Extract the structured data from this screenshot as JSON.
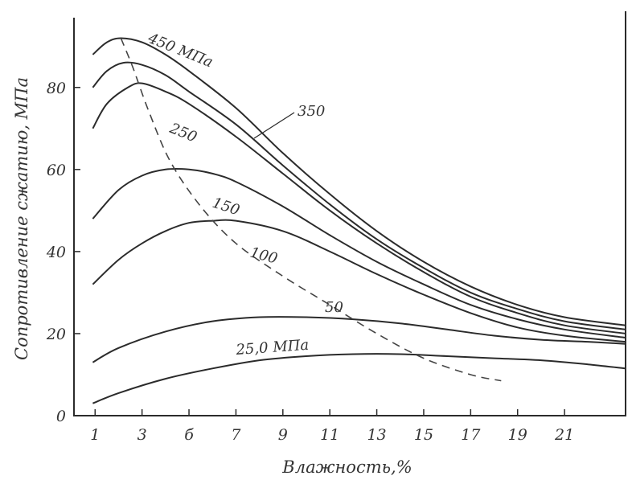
{
  "chart_data": {
    "type": "line",
    "title": "",
    "xlabel": "Влажность,%",
    "ylabel": "Сопротивление сжатию, МПа",
    "xlim": [
      0.1,
      23.6
    ],
    "ylim": [
      0,
      97
    ],
    "x_ticks": [
      1,
      3,
      5,
      7,
      9,
      11,
      13,
      15,
      17,
      19,
      21
    ],
    "x_tick_labels": [
      "1",
      "3",
      "б",
      "7",
      "9",
      "11",
      "13",
      "15",
      "17",
      "19",
      "21"
    ],
    "y_ticks": [
      0,
      20,
      40,
      60,
      80
    ],
    "y_tick_labels": [
      "0",
      "20",
      "40",
      "60",
      "80"
    ],
    "grid": false,
    "series": [
      {
        "name": "450 МПа",
        "points": [
          [
            0.9,
            88
          ],
          [
            1.5,
            91
          ],
          [
            2.1,
            92
          ],
          [
            3,
            91
          ],
          [
            4,
            88
          ],
          [
            5,
            84
          ],
          [
            7,
            75
          ],
          [
            9,
            64
          ],
          [
            11,
            54
          ],
          [
            13,
            45
          ],
          [
            15,
            37.5
          ],
          [
            17,
            31.5
          ],
          [
            19,
            27
          ],
          [
            21,
            24
          ],
          [
            23.6,
            22
          ]
        ]
      },
      {
        "name": "350",
        "points": [
          [
            0.9,
            80
          ],
          [
            1.5,
            84
          ],
          [
            2.2,
            86
          ],
          [
            3,
            85.5
          ],
          [
            4,
            83
          ],
          [
            5,
            79
          ],
          [
            7,
            71
          ],
          [
            9,
            61
          ],
          [
            11,
            51.5
          ],
          [
            13,
            43
          ],
          [
            15,
            36
          ],
          [
            17,
            30
          ],
          [
            19,
            26
          ],
          [
            21,
            23
          ],
          [
            23.6,
            21
          ]
        ]
      },
      {
        "name": "250",
        "points": [
          [
            0.9,
            70
          ],
          [
            1.5,
            76
          ],
          [
            2.4,
            80
          ],
          [
            3,
            81
          ],
          [
            4,
            79
          ],
          [
            5,
            76
          ],
          [
            7,
            68
          ],
          [
            9,
            59
          ],
          [
            11,
            50
          ],
          [
            13,
            42
          ],
          [
            15,
            35
          ],
          [
            17,
            29
          ],
          [
            19,
            25
          ],
          [
            21,
            22
          ],
          [
            23.6,
            20
          ]
        ]
      },
      {
        "name": "150",
        "points": [
          [
            0.9,
            48
          ],
          [
            2,
            55
          ],
          [
            3,
            58.5
          ],
          [
            4,
            60
          ],
          [
            5,
            60
          ],
          [
            6,
            59
          ],
          [
            7,
            57
          ],
          [
            9,
            51
          ],
          [
            11,
            44
          ],
          [
            13,
            37.5
          ],
          [
            15,
            32
          ],
          [
            17,
            27
          ],
          [
            19,
            23.5
          ],
          [
            21,
            21
          ],
          [
            23.6,
            19
          ]
        ]
      },
      {
        "name": "100",
        "points": [
          [
            0.9,
            32
          ],
          [
            2,
            38
          ],
          [
            3,
            42
          ],
          [
            4,
            45
          ],
          [
            5,
            47
          ],
          [
            6,
            47.5
          ],
          [
            7,
            47.5
          ],
          [
            9,
            45
          ],
          [
            11,
            40
          ],
          [
            13,
            34.5
          ],
          [
            15,
            29.5
          ],
          [
            17,
            25
          ],
          [
            19,
            21.5
          ],
          [
            21,
            19.5
          ],
          [
            23.6,
            18
          ]
        ]
      },
      {
        "name": "50",
        "points": [
          [
            0.9,
            13
          ],
          [
            2,
            16.5
          ],
          [
            4,
            20.5
          ],
          [
            6,
            23
          ],
          [
            8,
            24
          ],
          [
            10,
            24
          ],
          [
            12,
            23.5
          ],
          [
            14,
            22.5
          ],
          [
            16,
            21
          ],
          [
            18,
            19.5
          ],
          [
            20,
            18.5
          ],
          [
            22,
            18
          ],
          [
            23.6,
            17.5
          ]
        ]
      },
      {
        "name": "25,0 МПа",
        "points": [
          [
            0.9,
            3
          ],
          [
            2,
            5.5
          ],
          [
            4,
            9
          ],
          [
            6,
            11.5
          ],
          [
            8,
            13.5
          ],
          [
            10,
            14.5
          ],
          [
            12,
            15
          ],
          [
            14,
            15
          ],
          [
            16,
            14.5
          ],
          [
            18,
            14
          ],
          [
            20,
            13.5
          ],
          [
            22,
            12.5
          ],
          [
            23.6,
            11.5
          ]
        ]
      },
      {
        "name": "",
        "style": "dashed",
        "points": [
          [
            2.1,
            92
          ],
          [
            2.6,
            85
          ],
          [
            3.3,
            74
          ],
          [
            4.2,
            62
          ],
          [
            5.5,
            51
          ],
          [
            7,
            42
          ],
          [
            9,
            34
          ],
          [
            11,
            27
          ],
          [
            13,
            20
          ],
          [
            15,
            14
          ],
          [
            17,
            10
          ],
          [
            18.3,
            8.5
          ]
        ]
      }
    ],
    "annotations": [
      {
        "text": "450 МПа",
        "series": "450 МПа"
      },
      {
        "text": "350",
        "series": "350"
      },
      {
        "text": "250",
        "series": "250"
      },
      {
        "text": "150",
        "series": "150"
      },
      {
        "text": "100",
        "series": "100"
      },
      {
        "text": "50",
        "series": "50"
      },
      {
        "text": "25,0 МПа",
        "series": "25,0 МПа"
      }
    ]
  }
}
